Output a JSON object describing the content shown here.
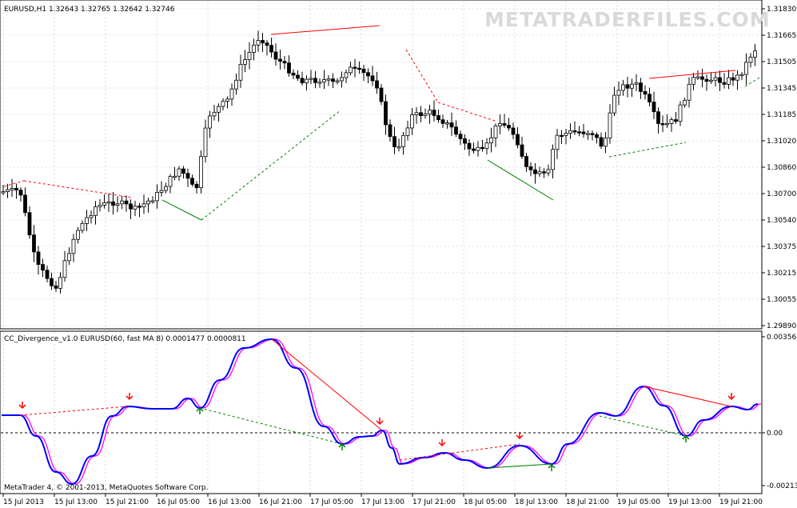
{
  "main_chart": {
    "title": "EURUSD,H1  1.32643 1.32765 1.32642 1.32746",
    "watermark": "METATRADERFILES.COM",
    "price_labels": [
      "1.31830",
      "1.31665",
      "1.31505",
      "1.31345",
      "1.31185",
      "1.31020",
      "1.30860",
      "1.30700",
      "1.30540",
      "1.30375",
      "1.30215",
      "1.30055",
      "1.29890"
    ],
    "colors": {
      "bull": "#ffffff",
      "bear": "#000000",
      "grid": "#c0c0c0",
      "bearish_div": "#ff0000",
      "bullish_div": "#008000"
    }
  },
  "indicator": {
    "title": "CC_Divergence_v1.0 EURUSD(60, fast MA 8) 0.0001477 0.0000811",
    "labels": [
      "0.003564",
      "0.00",
      "-0.002130"
    ],
    "colors": {
      "main_line": "#0000ff",
      "signal_line": "#ff00ff",
      "zero_line": "#000000"
    }
  },
  "time_labels": [
    "15 Jul 2013",
    "15 Jul 13:00",
    "15 Jul 21:00",
    "16 Jul 05:00",
    "16 Jul 13:00",
    "16 Jul 21:00",
    "17 Jul 05:00",
    "17 Jul 13:00",
    "17 Jul 21:00",
    "18 Jul 05:00",
    "18 Jul 13:00",
    "18 Jul 21:00",
    "19 Jul 05:00",
    "19 Jul 13:00",
    "19 Jul 21:00"
  ],
  "footer": "MetaTrader 4, © 2001-2013, MetaQuotes Software Corp."
}
